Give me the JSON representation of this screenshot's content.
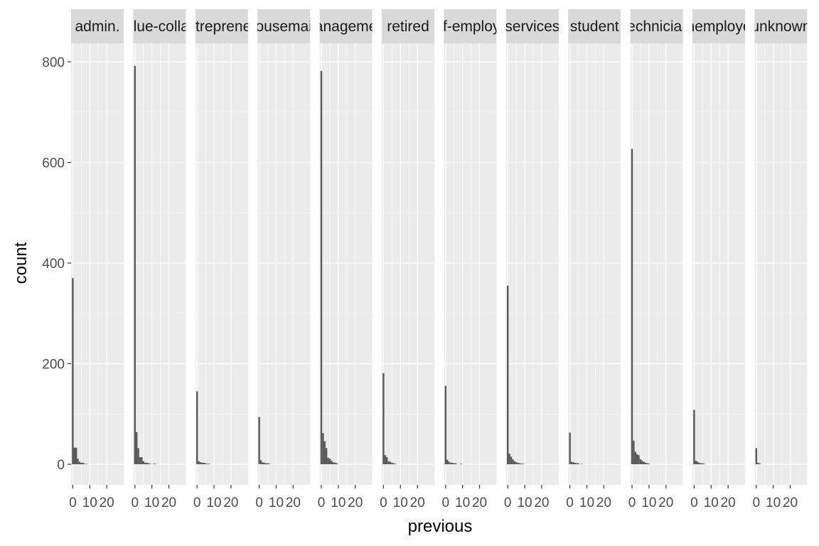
{
  "chart_data": {
    "type": "bar",
    "chart_kind": "faceted histogram",
    "xlabel": "previous",
    "ylabel": "count",
    "ylim": [
      0,
      800
    ],
    "yticks": [
      0,
      200,
      400,
      600,
      800
    ],
    "xlim": [
      -1,
      30
    ],
    "xticks": [
      0,
      10,
      20
    ],
    "xtick_labels": [
      "0",
      "10",
      "20"
    ],
    "bin_width": 1,
    "grid": true,
    "bar_color": "#595959",
    "panel_background": "#ebebeb",
    "strip_background": "#d9d9d9",
    "facets": [
      {
        "label": "admin.",
        "bins": [
          0,
          1,
          2,
          3,
          4,
          5,
          6,
          7,
          8
        ],
        "counts": [
          370,
          33,
          33,
          11,
          5,
          3,
          3,
          1,
          1
        ]
      },
      {
        "label": "blue-collar",
        "bins": [
          0,
          1,
          2,
          3,
          4,
          5,
          6,
          7,
          8,
          9,
          11,
          12
        ],
        "counts": [
          792,
          64,
          32,
          14,
          14,
          6,
          3,
          3,
          2,
          1,
          1,
          1
        ]
      },
      {
        "label": "entrepreneur",
        "bins": [
          0,
          1,
          2,
          3,
          4,
          5,
          6,
          7
        ],
        "counts": [
          145,
          6,
          4,
          3,
          3,
          2,
          1,
          1
        ]
      },
      {
        "label": "housemaid",
        "bins": [
          0,
          1,
          2,
          3,
          4,
          5,
          6
        ],
        "counts": [
          94,
          8,
          4,
          3,
          2,
          2,
          1
        ]
      },
      {
        "label": "management",
        "bins": [
          0,
          1,
          2,
          3,
          4,
          5,
          6,
          7,
          8,
          9
        ],
        "counts": [
          782,
          62,
          46,
          32,
          13,
          11,
          7,
          4,
          3,
          2
        ]
      },
      {
        "label": "retired",
        "bins": [
          0,
          1,
          2,
          3,
          4,
          5,
          6,
          7
        ],
        "counts": [
          181,
          18,
          14,
          6,
          5,
          3,
          2,
          1
        ]
      },
      {
        "label": "self-employed",
        "bins": [
          0,
          1,
          2,
          3,
          4,
          5,
          6,
          9
        ],
        "counts": [
          156,
          9,
          5,
          3,
          3,
          2,
          2,
          1
        ]
      },
      {
        "label": "services",
        "bins": [
          0,
          1,
          2,
          3,
          4,
          5,
          6,
          7,
          8,
          9
        ],
        "counts": [
          355,
          21,
          15,
          10,
          6,
          4,
          3,
          2,
          1,
          1
        ]
      },
      {
        "label": "student",
        "bins": [
          0,
          1,
          2,
          3,
          4,
          5,
          7
        ],
        "counts": [
          63,
          5,
          4,
          3,
          2,
          2,
          1
        ]
      },
      {
        "label": "technician",
        "bins": [
          0,
          1,
          2,
          3,
          4,
          5,
          6,
          7,
          8,
          9,
          10
        ],
        "counts": [
          627,
          47,
          25,
          20,
          18,
          10,
          7,
          5,
          3,
          2,
          1
        ]
      },
      {
        "label": "unemployed",
        "bins": [
          0,
          1,
          2,
          3,
          4,
          5,
          6
        ],
        "counts": [
          108,
          7,
          5,
          3,
          2,
          2,
          1
        ]
      },
      {
        "label": "unknown",
        "bins": [
          0,
          1,
          2
        ],
        "counts": [
          32,
          3,
          2
        ]
      }
    ]
  }
}
